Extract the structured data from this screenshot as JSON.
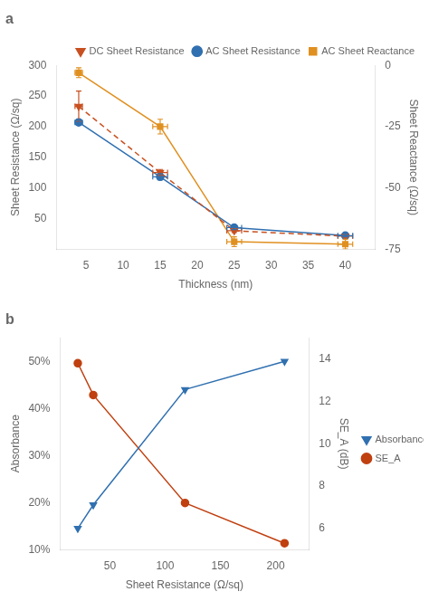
{
  "chart_data": [
    {
      "type": "line",
      "title": "a",
      "xlabel": "Thickness (nm)",
      "ylabel": "Sheet Resistance (Ω/sq)",
      "y2label": "Sheet Reactance (Ω/sq)",
      "x": [
        4,
        15,
        25,
        40
      ],
      "xlim": [
        1,
        44
      ],
      "xticks": [
        5,
        10,
        15,
        20,
        25,
        30,
        35,
        40
      ],
      "ylim": [
        0,
        300
      ],
      "yticks": [
        50,
        100,
        150,
        200,
        250,
        300
      ],
      "y2lim": [
        -75,
        0
      ],
      "y2ticks": [
        -75,
        -50,
        -25,
        0
      ],
      "grid": false,
      "legend": "upper right",
      "series": [
        {
          "name": "DC Sheet Resistance",
          "color": "#C85020",
          "marker": "triangle_down",
          "line_style": "dashed",
          "values": [
            233,
            125,
            30,
            21
          ],
          "yerr": [
            25,
            5,
            3,
            2
          ],
          "xerr": [
            0.5,
            1,
            1,
            1
          ]
        },
        {
          "name": "AC Sheet Resistance",
          "color": "#3070B0",
          "marker": "circle",
          "line_style": "solid",
          "values": [
            207,
            118,
            35,
            22
          ],
          "yerr": [
            5,
            5,
            3,
            2
          ],
          "xerr": [
            0.5,
            1,
            1,
            1
          ]
        },
        {
          "name": "AC Sheet Reactance",
          "color": "#E09020",
          "marker": "square",
          "line_style": "solid",
          "axis": "y2",
          "values": [
            -3,
            -25,
            -72,
            -73
          ],
          "yerr": [
            2,
            3,
            2,
            2
          ],
          "xerr": [
            0.5,
            1,
            1,
            1
          ]
        }
      ]
    },
    {
      "type": "line",
      "title": "b",
      "xlabel": "Sheet Resistance (Ω/sq)",
      "ylabel": "Absorbance",
      "y2label": "SE_A (dB)",
      "x": [
        21,
        35,
        118,
        208
      ],
      "xlim": [
        5,
        230
      ],
      "xticks": [
        50,
        100,
        150,
        200
      ],
      "ylim": [
        0.1,
        0.55
      ],
      "yticks": [
        {
          "value": 0.1,
          "label": "10%"
        },
        {
          "value": 0.2,
          "label": "20%"
        },
        {
          "value": 0.3,
          "label": "30%"
        },
        {
          "value": 0.4,
          "label": "40%"
        },
        {
          "value": 0.5,
          "label": "50%"
        }
      ],
      "y2lim": [
        5,
        15
      ],
      "y2ticks": [
        6,
        8,
        10,
        12,
        14
      ],
      "grid": false,
      "legend": "center right",
      "series": [
        {
          "name": "Absorbance",
          "color": "#3070B0",
          "marker": "triangle_down",
          "line_style": "solid",
          "values": [
            0.145,
            0.195,
            0.44,
            0.5
          ]
        },
        {
          "name": "SE_A",
          "color": "#C04010",
          "marker": "circle",
          "line_style": "solid",
          "axis": "y2",
          "values": [
            13.8,
            12.3,
            7.2,
            5.3
          ]
        }
      ]
    }
  ]
}
